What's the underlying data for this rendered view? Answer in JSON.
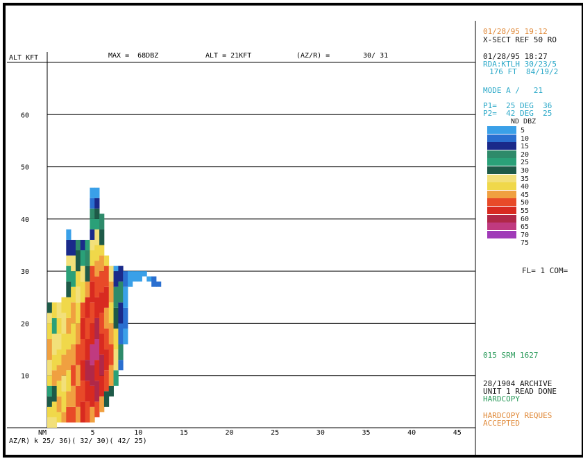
{
  "header": {
    "alt_label": "ALT KFT",
    "max_text": "MAX =  68DBZ",
    "alt_text": "ALT = 21KFT",
    "azr_label": "(AZ/R) =",
    "azr_value": "30/ 31"
  },
  "y_axis": {
    "ticks": [
      {
        "label": "60",
        "value": 60
      },
      {
        "label": "50",
        "value": 50
      },
      {
        "label": "40",
        "value": 40
      },
      {
        "label": "30",
        "value": 30
      },
      {
        "label": "20",
        "value": 20
      },
      {
        "label": "10",
        "value": 10
      }
    ]
  },
  "x_axis": {
    "unit": "NM",
    "ticks": [
      {
        "label": "5",
        "value": 5
      },
      {
        "label": "10",
        "value": 10
      },
      {
        "label": "15",
        "value": 15
      },
      {
        "label": "20",
        "value": 20
      },
      {
        "label": "25",
        "value": 25
      },
      {
        "label": "30",
        "value": 30
      },
      {
        "label": "35",
        "value": 35
      },
      {
        "label": "40",
        "value": 40
      },
      {
        "label": "45",
        "value": 45
      }
    ],
    "footer_text": "AZ/R) k 25/ 36)( 32/ 30)( 42/ 25)"
  },
  "side_panel": {
    "line1": "01/28/95 19:12",
    "line2": "X-SECT REF 50 RO",
    "line3": "01/28/95 18:27",
    "line4": "RDA:KTLH 30/23/5",
    "line5": "176 FT  84/19/2",
    "mode": "MODE A /   21",
    "p1": "P1=  25 DEG  36",
    "p2": "P2=  42 DEG  25",
    "legend_header": "ND DBZ",
    "legend": [
      {
        "label": "5",
        "color": "#3aa0e8"
      },
      {
        "label": "10",
        "color": "#2a6fd0"
      },
      {
        "label": "15",
        "color": "#1a2a8a"
      },
      {
        "label": "20",
        "color": "#2e8a6a"
      },
      {
        "label": "25",
        "color": "#2aa078"
      },
      {
        "label": "30",
        "color": "#1e5a48"
      },
      {
        "label": "35",
        "color": "#f2e07a"
      },
      {
        "label": "40",
        "color": "#f0d84a"
      },
      {
        "label": "45",
        "color": "#f0a040"
      },
      {
        "label": "50",
        "color": "#e84a28"
      },
      {
        "label": "55",
        "color": "#d82a20"
      },
      {
        "label": "60",
        "color": "#b02848"
      },
      {
        "label": "65",
        "color": "#c03a80"
      },
      {
        "label": "70",
        "color": "#a03ab8"
      },
      {
        "label": "75",
        "color": ""
      }
    ],
    "fl_text": "FL= 1 COM=",
    "srm_text": "015 SRM 1627",
    "archive_text": "28/1904 ARCHIVE",
    "unit_text": "UNIT 1 READ DONE",
    "hardcopy_text": "HARDCOPY",
    "hardcopy_req_text": "HARDCOPY REQUES",
    "accepted_text": "ACCEPTED"
  },
  "colors": {
    "orange_text": "#e08a3a",
    "cyan_text": "#2aa8c8",
    "green_text": "#2a9a5a",
    "frame": "#000000"
  },
  "chart_data": {
    "type": "heatmap",
    "xlabel": "NM",
    "ylabel": "ALT KFT",
    "xlim": [
      0,
      47
    ],
    "ylim": [
      0,
      70
    ],
    "cell_size": {
      "dx": 0.52,
      "dy": 1.1
    },
    "columns": [
      {
        "x": 0.0,
        "cells": [
          [
            0,
            2,
            "35"
          ],
          [
            2,
            4,
            "40"
          ],
          [
            4,
            6,
            "30"
          ],
          [
            6,
            8,
            "25"
          ],
          [
            8,
            10,
            "40"
          ],
          [
            10,
            13,
            "35"
          ],
          [
            13,
            17,
            "45"
          ],
          [
            17,
            20,
            "40"
          ],
          [
            20,
            22,
            "35"
          ],
          [
            22,
            24,
            "30"
          ]
        ]
      },
      {
        "x": 0.52,
        "cells": [
          [
            0,
            2,
            "35"
          ],
          [
            2,
            5,
            "40"
          ],
          [
            5,
            8,
            "30"
          ],
          [
            8,
            11,
            "45"
          ],
          [
            11,
            14,
            "40"
          ],
          [
            14,
            18,
            "35"
          ],
          [
            18,
            21,
            "25"
          ],
          [
            21,
            24,
            "40"
          ]
        ]
      },
      {
        "x": 1.04,
        "cells": [
          [
            1,
            3,
            "40"
          ],
          [
            3,
            6,
            "45"
          ],
          [
            6,
            9,
            "40"
          ],
          [
            9,
            12,
            "45"
          ],
          [
            12,
            15,
            "40"
          ],
          [
            15,
            18,
            "35"
          ],
          [
            18,
            21,
            "40"
          ],
          [
            21,
            24,
            "35"
          ]
        ]
      },
      {
        "x": 1.56,
        "cells": [
          [
            1,
            3,
            "45"
          ],
          [
            3,
            7,
            "40"
          ],
          [
            7,
            10,
            "35"
          ],
          [
            10,
            14,
            "45"
          ],
          [
            14,
            18,
            "40"
          ],
          [
            18,
            22,
            "35"
          ],
          [
            22,
            25,
            "40"
          ]
        ]
      },
      {
        "x": 2.08,
        "cells": [
          [
            1,
            4,
            "50"
          ],
          [
            4,
            7,
            "45"
          ],
          [
            7,
            11,
            "40"
          ],
          [
            11,
            15,
            "45"
          ],
          [
            15,
            18,
            "40"
          ],
          [
            18,
            21,
            "45"
          ],
          [
            21,
            25,
            "40"
          ],
          [
            25,
            28,
            "30"
          ],
          [
            28,
            31,
            "25"
          ],
          [
            31,
            33,
            "35"
          ],
          [
            33,
            36,
            "15"
          ],
          [
            36,
            38,
            "5"
          ]
        ]
      },
      {
        "x": 2.6,
        "cells": [
          [
            1,
            4,
            "50"
          ],
          [
            4,
            8,
            "45"
          ],
          [
            8,
            12,
            "50"
          ],
          [
            12,
            16,
            "45"
          ],
          [
            16,
            20,
            "40"
          ],
          [
            20,
            24,
            "45"
          ],
          [
            24,
            27,
            "40"
          ],
          [
            27,
            30,
            "25"
          ],
          [
            30,
            33,
            "35"
          ],
          [
            33,
            36,
            "15"
          ]
        ]
      },
      {
        "x": 3.12,
        "cells": [
          [
            1,
            4,
            "45"
          ],
          [
            4,
            8,
            "50"
          ],
          [
            8,
            12,
            "45"
          ],
          [
            12,
            16,
            "50"
          ],
          [
            16,
            20,
            "45"
          ],
          [
            20,
            24,
            "40"
          ],
          [
            24,
            27,
            "35"
          ],
          [
            27,
            30,
            "40"
          ],
          [
            30,
            34,
            "30"
          ],
          [
            34,
            36,
            "20"
          ]
        ]
      },
      {
        "x": 3.64,
        "cells": [
          [
            1,
            5,
            "55"
          ],
          [
            5,
            9,
            "50"
          ],
          [
            9,
            13,
            "55"
          ],
          [
            13,
            17,
            "50"
          ],
          [
            17,
            21,
            "55"
          ],
          [
            21,
            24,
            "50"
          ],
          [
            24,
            28,
            "40"
          ],
          [
            28,
            31,
            "35"
          ],
          [
            31,
            34,
            "25"
          ],
          [
            34,
            36,
            "15"
          ]
        ]
      },
      {
        "x": 4.16,
        "cells": [
          [
            1,
            5,
            "50"
          ],
          [
            5,
            9,
            "55"
          ],
          [
            9,
            13,
            "60"
          ],
          [
            13,
            17,
            "55"
          ],
          [
            17,
            21,
            "50"
          ],
          [
            21,
            25,
            "55"
          ],
          [
            25,
            28,
            "45"
          ],
          [
            28,
            31,
            "30"
          ],
          [
            31,
            34,
            "20"
          ],
          [
            34,
            36,
            "25"
          ]
        ]
      },
      {
        "x": 4.68,
        "cells": [
          [
            1,
            4,
            "45"
          ],
          [
            4,
            8,
            "55"
          ],
          [
            8,
            12,
            "60"
          ],
          [
            12,
            16,
            "65"
          ],
          [
            16,
            20,
            "55"
          ],
          [
            20,
            24,
            "50"
          ],
          [
            24,
            28,
            "55"
          ],
          [
            28,
            31,
            "50"
          ],
          [
            31,
            34,
            "40"
          ],
          [
            34,
            36,
            "35"
          ],
          [
            36,
            38,
            "15"
          ],
          [
            38,
            40,
            "25"
          ],
          [
            40,
            42,
            "20"
          ],
          [
            42,
            44,
            "10"
          ],
          [
            44,
            46,
            "5"
          ]
        ]
      },
      {
        "x": 5.2,
        "cells": [
          [
            2,
            5,
            "50"
          ],
          [
            5,
            9,
            "60"
          ],
          [
            9,
            13,
            "55"
          ],
          [
            13,
            17,
            "65"
          ],
          [
            17,
            21,
            "60"
          ],
          [
            21,
            25,
            "55"
          ],
          [
            25,
            29,
            "50"
          ],
          [
            29,
            32,
            "45"
          ],
          [
            32,
            35,
            "40"
          ],
          [
            35,
            38,
            "35"
          ],
          [
            38,
            40,
            "25"
          ],
          [
            40,
            42,
            "30"
          ],
          [
            42,
            44,
            "15"
          ],
          [
            44,
            46,
            "5"
          ]
        ]
      },
      {
        "x": 5.72,
        "cells": [
          [
            3,
            6,
            "45"
          ],
          [
            6,
            10,
            "55"
          ],
          [
            10,
            14,
            "60"
          ],
          [
            14,
            18,
            "55"
          ],
          [
            18,
            22,
            "50"
          ],
          [
            22,
            26,
            "55"
          ],
          [
            26,
            30,
            "50"
          ],
          [
            30,
            33,
            "45"
          ],
          [
            33,
            35,
            "40"
          ],
          [
            35,
            38,
            "30"
          ],
          [
            38,
            41,
            "20"
          ]
        ]
      },
      {
        "x": 6.24,
        "cells": [
          [
            4,
            7,
            "30"
          ],
          [
            7,
            11,
            "50"
          ],
          [
            11,
            15,
            "55"
          ],
          [
            15,
            19,
            "50"
          ],
          [
            19,
            23,
            "45"
          ],
          [
            23,
            27,
            "55"
          ],
          [
            27,
            31,
            "50"
          ],
          [
            31,
            33,
            "40"
          ]
        ]
      },
      {
        "x": 6.76,
        "cells": [
          [
            6,
            8,
            "30"
          ],
          [
            8,
            12,
            "45"
          ],
          [
            12,
            16,
            "50"
          ],
          [
            16,
            20,
            "45"
          ],
          [
            20,
            24,
            "40"
          ],
          [
            24,
            28,
            "45"
          ],
          [
            28,
            31,
            "35"
          ]
        ]
      },
      {
        "x": 7.28,
        "cells": [
          [
            8,
            11,
            "25"
          ],
          [
            11,
            15,
            "35"
          ],
          [
            15,
            19,
            "40"
          ],
          [
            19,
            23,
            "30"
          ],
          [
            23,
            27,
            "20"
          ],
          [
            27,
            30,
            "15"
          ],
          [
            30,
            31,
            "5"
          ]
        ]
      },
      {
        "x": 7.8,
        "cells": [
          [
            11,
            13,
            "10"
          ],
          [
            13,
            16,
            "20"
          ],
          [
            16,
            20,
            "10"
          ],
          [
            20,
            24,
            "15"
          ],
          [
            24,
            28,
            "20"
          ],
          [
            28,
            31,
            "15"
          ]
        ]
      },
      {
        "x": 8.32,
        "cells": [
          [
            16,
            19,
            "5"
          ],
          [
            19,
            23,
            "10"
          ],
          [
            23,
            27,
            "5"
          ],
          [
            27,
            30,
            "10"
          ]
        ]
      },
      {
        "x": 8.84,
        "cells": [
          [
            27,
            30,
            "5"
          ]
        ]
      },
      {
        "x": 9.36,
        "cells": [
          [
            28,
            30,
            "5"
          ]
        ]
      },
      {
        "x": 9.88,
        "cells": [
          [
            28,
            30,
            "5"
          ]
        ]
      },
      {
        "x": 10.4,
        "cells": [
          [
            29,
            30,
            "5"
          ]
        ]
      },
      {
        "x": 10.92,
        "cells": [
          [
            28,
            29,
            "5"
          ]
        ]
      },
      {
        "x": 11.44,
        "cells": [
          [
            27,
            29,
            "10"
          ]
        ]
      },
      {
        "x": 11.96,
        "cells": [
          [
            27,
            28,
            "10"
          ]
        ]
      }
    ]
  }
}
